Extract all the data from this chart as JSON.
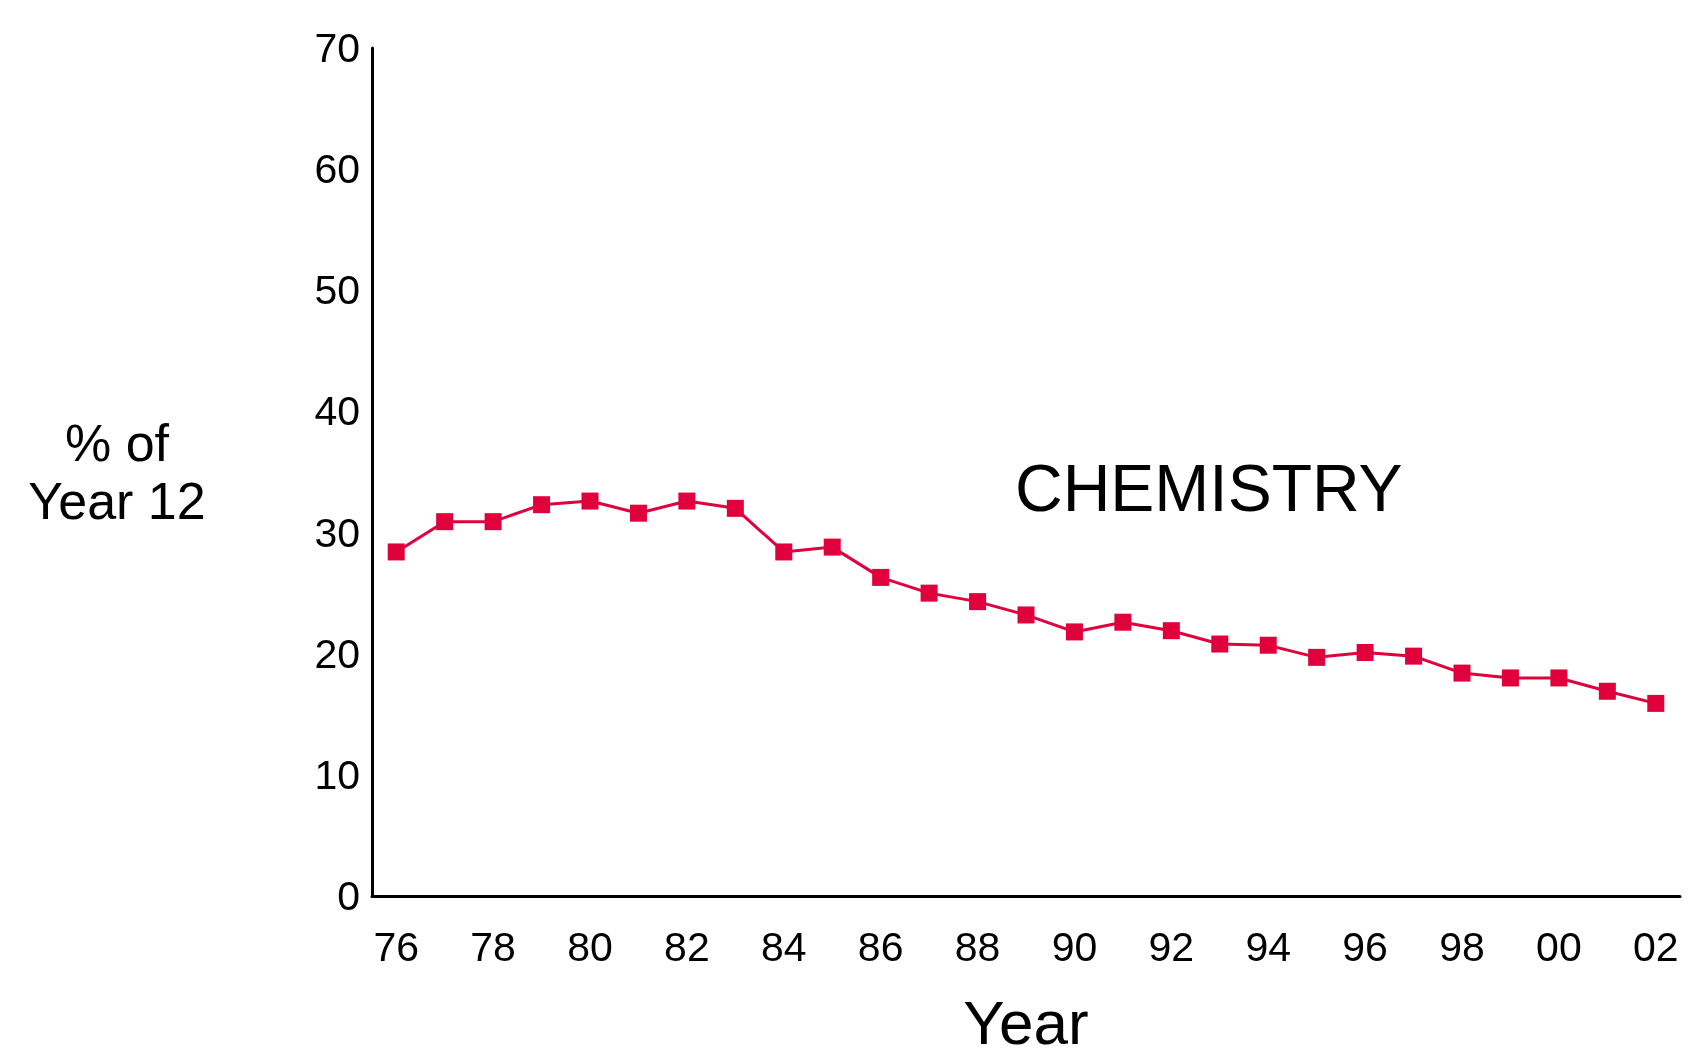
{
  "chart_data": {
    "type": "line",
    "xlabel": "Year",
    "ylabel": "% of\nYear 12",
    "annotations": [
      "CHEMISTRY"
    ],
    "categories": [
      "76",
      null,
      "78",
      null,
      "80",
      null,
      "82",
      null,
      "84",
      null,
      "86",
      null,
      "88",
      null,
      "90",
      null,
      "92",
      null,
      "94",
      null,
      "96",
      null,
      "98",
      null,
      "00",
      null,
      "02"
    ],
    "series": [
      {
        "color": "#e0003c",
        "values": [
          28.4,
          30.9,
          30.9,
          32.3,
          32.6,
          31.6,
          32.6,
          32.0,
          28.4,
          28.8,
          26.3,
          25.0,
          24.3,
          23.2,
          21.8,
          22.6,
          21.9,
          20.8,
          20.7,
          19.7,
          20.1,
          19.8,
          18.4,
          18.0,
          18.0,
          16.9,
          15.9
        ]
      }
    ],
    "ylim": [
      0,
      70
    ],
    "yticks": [
      0,
      10,
      20,
      30,
      40,
      50,
      60,
      70
    ],
    "grid": false,
    "marker": "square",
    "line_style": "solid"
  }
}
